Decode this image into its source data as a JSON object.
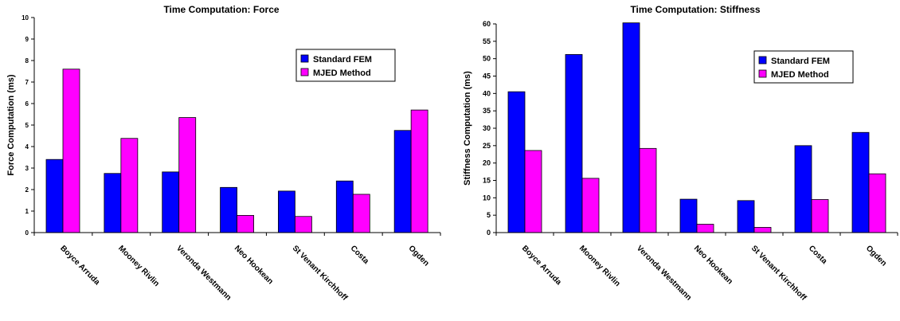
{
  "colors": {
    "standard": "#0000FF",
    "mjed": "#FF00FF",
    "axis": "#000000"
  },
  "chart_data": [
    {
      "type": "bar",
      "title": "Time Computation: Force",
      "xlabel": "",
      "ylabel": "Force Computation (ms)",
      "ylim": [
        0,
        10
      ],
      "yticks": [
        0,
        1,
        2,
        3,
        4,
        5,
        6,
        7,
        8,
        9,
        10
      ],
      "grid": false,
      "legend_position": "top-right",
      "categories": [
        "Boyce Arruda",
        "Mooney Rivlin",
        "Veronda Westmann",
        "Neo Hookean",
        "St Venant Kirchhoff",
        "Costa",
        "Ogden"
      ],
      "series": [
        {
          "name": "Standard FEM",
          "values": [
            3.4,
            2.75,
            2.82,
            2.1,
            1.93,
            2.4,
            4.75
          ]
        },
        {
          "name": "MJED Method",
          "values": [
            7.6,
            4.38,
            5.35,
            0.8,
            0.75,
            1.78,
            5.7
          ]
        }
      ]
    },
    {
      "type": "bar",
      "title": "Time Computation: Stiffness",
      "xlabel": "",
      "ylabel": "Stiffness Computation (ms)",
      "ylim": [
        0,
        60
      ],
      "yticks": [
        0,
        5,
        10,
        15,
        20,
        25,
        30,
        35,
        40,
        45,
        50,
        55,
        60
      ],
      "grid": false,
      "legend_position": "top-right",
      "categories": [
        "Boyce Arruda",
        "Mooney Rivlin",
        "Veronda Westmann",
        "Neo Hookean",
        "St Venant Kirchhoff",
        "Costa",
        "Ogden"
      ],
      "series": [
        {
          "name": "Standard FEM",
          "values": [
            40.5,
            51.2,
            60.3,
            9.6,
            9.2,
            25.0,
            28.8
          ]
        },
        {
          "name": "MJED Method",
          "values": [
            23.6,
            15.6,
            24.2,
            2.4,
            1.5,
            9.5,
            16.9
          ]
        }
      ]
    }
  ]
}
